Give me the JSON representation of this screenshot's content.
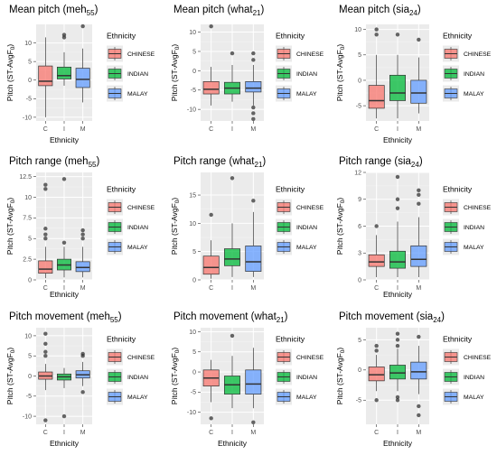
{
  "colors": {
    "panel_bg": "#EBEBEB",
    "grid_major": "#FFFFFF",
    "box_stroke": "#333333",
    "outlier": "#333333",
    "CHINESE": "#F8766D",
    "INDIAN": "#00BA38",
    "MALAY": "#619CFF"
  },
  "chart_data": [
    {
      "type": "boxplot",
      "title": "Mean pitch (meh",
      "subscript": "55",
      "xlabel": "Ethnicity",
      "ylabel": "Pitch (ST-AvgF",
      "ylabel_sub": "0",
      "ylabel_end": ")",
      "categories": [
        "C",
        "I",
        "M"
      ],
      "ylim": [
        -11,
        15
      ],
      "yticks": [
        -10,
        -5,
        0,
        5,
        10
      ],
      "legend": {
        "title": "Ethnicity",
        "position": "right",
        "entries": [
          "CHINESE",
          "INDIAN",
          "MALAY"
        ]
      },
      "series": [
        {
          "name": "CHINESE",
          "min": -10,
          "q1": -1.5,
          "median": -0.3,
          "q3": 3.8,
          "max": 11.5,
          "outliers": []
        },
        {
          "name": "INDIAN",
          "min": -1.5,
          "q1": 0.3,
          "median": 1.2,
          "q3": 3.5,
          "max": 7.5,
          "outliers": [
            11.5,
            12.2
          ]
        },
        {
          "name": "MALAY",
          "min": -6,
          "q1": -2,
          "median": 0.2,
          "q3": 3.2,
          "max": 8.5,
          "outliers": [
            14.5
          ]
        }
      ]
    },
    {
      "type": "boxplot",
      "title": "Mean pitch (what",
      "subscript": "21",
      "xlabel": "",
      "ylabel": "Pitch (ST-AvgF",
      "ylabel_sub": "0",
      "ylabel_end": ")",
      "categories": [
        "C",
        "I",
        "M"
      ],
      "ylim": [
        -13,
        12
      ],
      "yticks": [
        -10,
        -5,
        0,
        5,
        10
      ],
      "legend": {
        "title": "Ethnicity",
        "position": "right",
        "entries": [
          "CHINESE",
          "INDIAN",
          "MALAY"
        ]
      },
      "series": [
        {
          "name": "CHINESE",
          "min": -9,
          "q1": -6,
          "median": -4.8,
          "q3": -2.8,
          "max": 1,
          "outliers": [
            11.5
          ]
        },
        {
          "name": "INDIAN",
          "min": -8,
          "q1": -6,
          "median": -4.5,
          "q3": -3,
          "max": 1.5,
          "outliers": [
            4.5
          ]
        },
        {
          "name": "MALAY",
          "min": -9,
          "q1": -5.5,
          "median": -4.5,
          "q3": -2.8,
          "max": 1.5,
          "outliers": [
            2.8,
            4.5,
            -9.5,
            -11,
            -12.5
          ]
        }
      ]
    },
    {
      "type": "boxplot",
      "title": "Mean pitch (sia",
      "subscript": "24",
      "xlabel": "Ethnicity",
      "ylabel": "Pitch (ST-AvgF",
      "ylabel_sub": "0",
      "ylabel_end": ")",
      "categories": [
        "C",
        "I",
        "M"
      ],
      "ylim": [
        -8,
        11
      ],
      "yticks": [
        -5,
        0,
        5,
        10
      ],
      "legend": {
        "title": "Ethnicity",
        "position": "right",
        "entries": [
          "CHINESE",
          "INDIAN",
          "MALAY"
        ]
      },
      "series": [
        {
          "name": "CHINESE",
          "min": -7.5,
          "q1": -5.5,
          "median": -4,
          "q3": -1,
          "max": 5,
          "outliers": [
            9,
            10
          ]
        },
        {
          "name": "INDIAN",
          "min": -7.5,
          "q1": -4,
          "median": -2.5,
          "q3": 1,
          "max": 5,
          "outliers": [
            9
          ]
        },
        {
          "name": "MALAY",
          "min": -6.5,
          "q1": -4.5,
          "median": -2.5,
          "q3": 0,
          "max": 4.5,
          "outliers": [
            8
          ]
        }
      ]
    },
    {
      "type": "boxplot",
      "title": "Pitch range (meh",
      "subscript": "55",
      "xlabel": "Ethnicity",
      "ylabel": "Pitch (ST-AvgF",
      "ylabel_sub": "0",
      "ylabel_end": ")",
      "categories": [
        "C",
        "I",
        "M"
      ],
      "ylim": [
        0,
        13
      ],
      "yticks": [
        0,
        2.5,
        5,
        7.5,
        10,
        12.5
      ],
      "legend": {
        "title": "Ethnicity",
        "position": "right",
        "entries": [
          "CHINESE",
          "INDIAN",
          "MALAY"
        ]
      },
      "series": [
        {
          "name": "CHINESE",
          "min": 0.2,
          "q1": 0.8,
          "median": 1.3,
          "q3": 2.3,
          "max": 4,
          "outliers": [
            5,
            5.5,
            6.2,
            11,
            11.5
          ]
        },
        {
          "name": "INDIAN",
          "min": 0.3,
          "q1": 1.2,
          "median": 1.8,
          "q3": 2.5,
          "max": 4,
          "outliers": [
            4.5,
            12.2
          ]
        },
        {
          "name": "MALAY",
          "min": 0.3,
          "q1": 1,
          "median": 1.5,
          "q3": 2.2,
          "max": 4,
          "outliers": [
            5,
            5.5,
            6
          ]
        }
      ]
    },
    {
      "type": "boxplot",
      "title": "Pitch range (what",
      "subscript": "21",
      "xlabel": "",
      "ylabel": "Pitch (ST-AvgF",
      "ylabel_sub": "0",
      "ylabel_end": ")",
      "categories": [
        "C",
        "I",
        "M"
      ],
      "ylim": [
        0,
        19
      ],
      "yticks": [
        0,
        5,
        10,
        15
      ],
      "legend": {
        "title": "Ethnicity",
        "position": "right",
        "entries": [
          "CHINESE",
          "INDIAN",
          "MALAY"
        ]
      },
      "series": [
        {
          "name": "CHINESE",
          "min": 0.2,
          "q1": 1,
          "median": 2.2,
          "q3": 4.2,
          "max": 7,
          "outliers": [
            11.5
          ]
        },
        {
          "name": "INDIAN",
          "min": 0.5,
          "q1": 2.5,
          "median": 3.7,
          "q3": 5.5,
          "max": 10,
          "outliers": [
            18
          ]
        },
        {
          "name": "MALAY",
          "min": 0.5,
          "q1": 1.5,
          "median": 3.2,
          "q3": 6,
          "max": 12,
          "outliers": [
            14
          ]
        }
      ]
    },
    {
      "type": "boxplot",
      "title": "Pitch range (sia",
      "subscript": "24",
      "xlabel": "Ethnicity",
      "ylabel": "Pitch (ST-AvgF",
      "ylabel_sub": "0",
      "ylabel_end": ")",
      "categories": [
        "C",
        "I",
        "M"
      ],
      "ylim": [
        0,
        12
      ],
      "yticks": [
        0,
        3,
        6,
        9,
        12
      ],
      "legend": {
        "title": "Ethnicity",
        "position": "right",
        "entries": [
          "CHINESE",
          "INDIAN",
          "MALAY"
        ]
      },
      "series": [
        {
          "name": "CHINESE",
          "min": 0.3,
          "q1": 1.5,
          "median": 2,
          "q3": 2.8,
          "max": 5,
          "outliers": [
            6
          ]
        },
        {
          "name": "INDIAN",
          "min": 0.3,
          "q1": 1.3,
          "median": 2,
          "q3": 3.2,
          "max": 6.5,
          "outliers": [
            8,
            9,
            11.5
          ]
        },
        {
          "name": "MALAY",
          "min": 0.3,
          "q1": 1.5,
          "median": 2.3,
          "q3": 3.8,
          "max": 7,
          "outliers": [
            8.5,
            9.5,
            10
          ]
        }
      ]
    },
    {
      "type": "boxplot",
      "title": "Pitch movement (meh",
      "subscript": "55",
      "xlabel": "Ethnicity",
      "ylabel": "Pitch (ST-AvgF",
      "ylabel_sub": "0",
      "ylabel_end": ")",
      "categories": [
        "C",
        "I",
        "M"
      ],
      "ylim": [
        -12,
        12
      ],
      "yticks": [
        -10,
        -5,
        0,
        5,
        10
      ],
      "legend": {
        "title": "Ethnicity",
        "position": "right",
        "entries": [
          "CHINESE",
          "INDIAN",
          "MALAY"
        ]
      },
      "series": [
        {
          "name": "CHINESE",
          "min": -3.5,
          "q1": -0.8,
          "median": 0,
          "q3": 1,
          "max": 3,
          "outliers": [
            10.5,
            8,
            6,
            5,
            -11
          ]
        },
        {
          "name": "INDIAN",
          "min": -3,
          "q1": -1,
          "median": -0.2,
          "q3": 0.5,
          "max": 2,
          "outliers": [
            -10
          ]
        },
        {
          "name": "MALAY",
          "min": -2.5,
          "q1": -0.5,
          "median": 0.3,
          "q3": 1.3,
          "max": 3.5,
          "outliers": [
            5,
            5.5,
            -4
          ]
        }
      ]
    },
    {
      "type": "boxplot",
      "title": "Pitch movement (what",
      "subscript": "21",
      "xlabel": "Ethnicity",
      "ylabel": "Pitch (ST-AvgF",
      "ylabel_sub": "0",
      "ylabel_end": ")",
      "categories": [
        "C",
        "I",
        "M"
      ],
      "ylim": [
        -13,
        11
      ],
      "yticks": [
        -10,
        -5,
        0,
        5,
        10
      ],
      "legend": {
        "title": "Ethnicity",
        "position": "right",
        "entries": [
          "CHINESE",
          "INDIAN",
          "MALAY"
        ]
      },
      "series": [
        {
          "name": "CHINESE",
          "min": -7.5,
          "q1": -3.5,
          "median": -1.5,
          "q3": 0.5,
          "max": 3,
          "outliers": [
            -11.5
          ]
        },
        {
          "name": "INDIAN",
          "min": -9,
          "q1": -5.5,
          "median": -3.2,
          "q3": -1,
          "max": 4,
          "outliers": [
            9
          ]
        },
        {
          "name": "MALAY",
          "min": -9,
          "q1": -5.5,
          "median": -3,
          "q3": 0.5,
          "max": 6,
          "outliers": [
            -12.5
          ]
        }
      ]
    },
    {
      "type": "boxplot",
      "title": "Pitch movement (sia",
      "subscript": "24",
      "xlabel": "Ethnicity",
      "ylabel": "Pitch (ST-AvgF",
      "ylabel_sub": "0",
      "ylabel_end": ")",
      "categories": [
        "C",
        "I",
        "M"
      ],
      "ylim": [
        -9,
        7
      ],
      "yticks": [
        -5,
        0,
        5
      ],
      "legend": {
        "title": "Ethnicity",
        "position": "right",
        "entries": [
          "CHINESE",
          "INDIAN",
          "MALAY"
        ]
      },
      "series": [
        {
          "name": "CHINESE",
          "min": -3.5,
          "q1": -1.8,
          "median": -0.8,
          "q3": 0.5,
          "max": 2.5,
          "outliers": [
            3.2,
            4,
            -5
          ]
        },
        {
          "name": "INDIAN",
          "min": -3.5,
          "q1": -1.5,
          "median": -0.5,
          "q3": 0.8,
          "max": 3.5,
          "outliers": [
            4,
            5,
            6,
            -4.5,
            -5
          ]
        },
        {
          "name": "MALAY",
          "min": -4,
          "q1": -1.5,
          "median": -0.3,
          "q3": 1.3,
          "max": 4,
          "outliers": [
            5.5,
            -6,
            -7.5
          ]
        }
      ]
    }
  ]
}
